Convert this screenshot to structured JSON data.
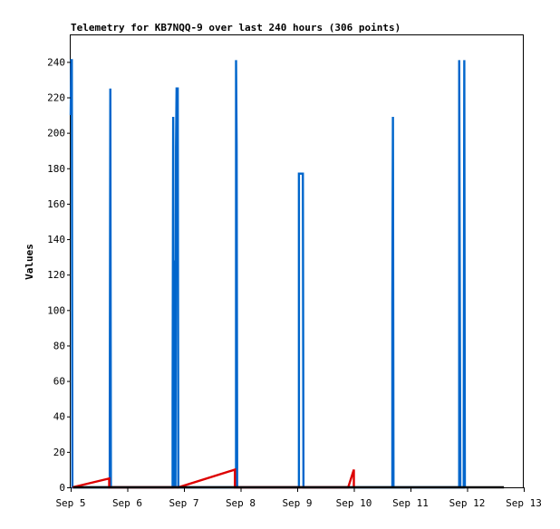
{
  "chart_data": {
    "type": "line",
    "title": "Telemetry for KB7NQQ-9 over last 240 hours (306 points)",
    "xlabel": "",
    "ylabel": "Values",
    "xlim": [
      0,
      8
    ],
    "ylim": [
      0,
      255
    ],
    "x_tick_labels": [
      "Sep 5",
      "Sep 6",
      "Sep 7",
      "Sep 8",
      "Sep 9",
      "Sep 10",
      "Sep 11",
      "Sep 12",
      "Sep 13"
    ],
    "y_ticks": [
      0,
      20,
      40,
      60,
      80,
      100,
      120,
      140,
      160,
      180,
      200,
      220,
      240
    ],
    "grid": false,
    "colors": {
      "blue_series": "#0066cc",
      "red_series": "#dd0000",
      "black_series": "#000000"
    },
    "series": [
      {
        "color": "#0066cc",
        "points": [
          [
            0.0,
            210
          ],
          [
            0.01,
            241
          ],
          [
            0.02,
            241
          ],
          [
            0.03,
            0
          ],
          [
            0.69,
            0
          ],
          [
            0.69,
            32
          ],
          [
            0.7,
            225
          ],
          [
            0.71,
            0
          ],
          [
            1.8,
            0
          ],
          [
            1.8,
            48
          ],
          [
            1.81,
            209
          ],
          [
            1.82,
            0
          ],
          [
            1.83,
            128
          ],
          [
            1.84,
            97
          ],
          [
            1.85,
            0
          ],
          [
            1.86,
            192
          ],
          [
            1.87,
            225
          ],
          [
            1.88,
            225
          ],
          [
            1.89,
            225
          ],
          [
            1.9,
            0
          ],
          [
            2.92,
            0
          ],
          [
            2.92,
            241
          ],
          [
            2.93,
            193
          ],
          [
            2.94,
            0
          ],
          [
            4.03,
            0
          ],
          [
            4.03,
            177
          ],
          [
            4.1,
            177
          ],
          [
            4.11,
            0
          ],
          [
            5.68,
            0
          ],
          [
            5.68,
            104
          ],
          [
            5.69,
            209
          ],
          [
            5.7,
            0
          ],
          [
            6.86,
            0
          ],
          [
            6.86,
            241
          ],
          [
            6.87,
            121
          ],
          [
            6.88,
            0
          ],
          [
            6.94,
            0
          ],
          [
            6.94,
            32
          ],
          [
            6.95,
            241
          ],
          [
            6.96,
            0
          ]
        ]
      },
      {
        "color": "#dd0000",
        "points": [
          [
            0.03,
            0
          ],
          [
            0.68,
            5
          ],
          [
            0.68,
            0
          ],
          [
            1.9,
            0
          ],
          [
            2.9,
            10
          ],
          [
            2.9,
            0
          ],
          [
            4.9,
            0
          ],
          [
            5.0,
            10
          ],
          [
            5.0,
            0
          ]
        ]
      },
      {
        "color": "#000000",
        "points": [
          [
            0.04,
            0
          ],
          [
            7.65,
            0
          ]
        ]
      }
    ]
  }
}
